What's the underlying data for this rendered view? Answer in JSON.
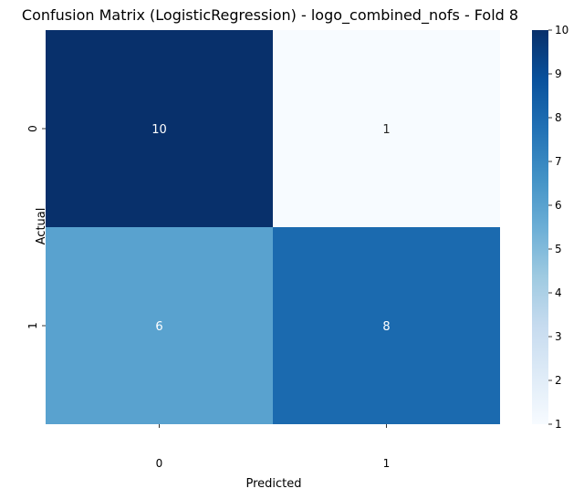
{
  "chart_data": {
    "type": "heatmap",
    "title": "Confusion Matrix (LogisticRegression) - logo_combined_nofs - Fold 8",
    "xlabel": "Predicted",
    "ylabel": "Actual",
    "x_categories": [
      "0",
      "1"
    ],
    "y_categories": [
      "0",
      "1"
    ],
    "values": [
      [
        10,
        1
      ],
      [
        6,
        8
      ]
    ],
    "colormap": "Blues",
    "colorbar": {
      "min": 1,
      "max": 10,
      "ticks": [
        "1",
        "2",
        "3",
        "4",
        "5",
        "6",
        "7",
        "8",
        "9",
        "10"
      ]
    },
    "colors": {
      "dark": "#08306b",
      "light": "#f7fbff",
      "text_on_dark": "#ffffff",
      "text_on_light": "#262626"
    }
  }
}
